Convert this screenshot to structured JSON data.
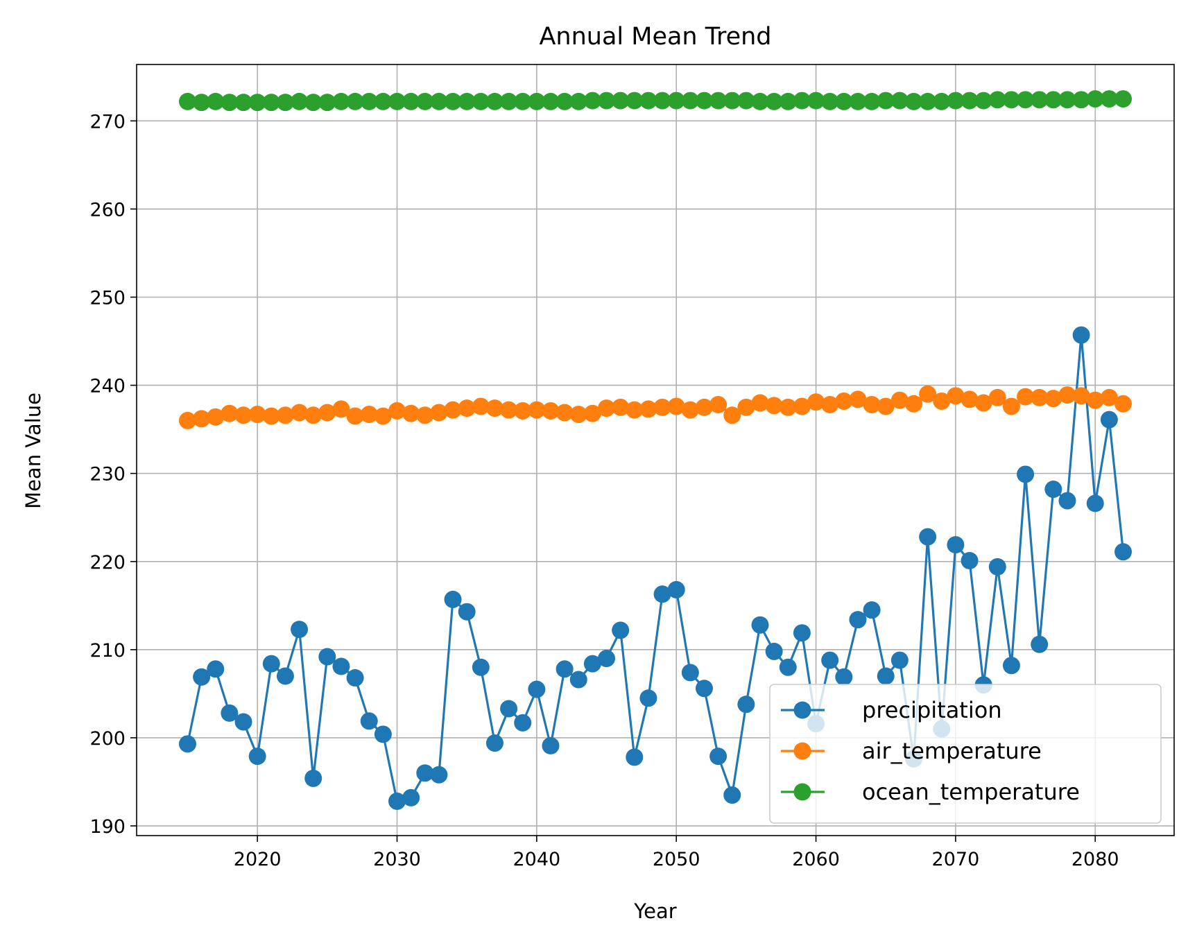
{
  "chart_data": {
    "type": "line",
    "title": "Annual Mean Trend",
    "xlabel": "Year",
    "ylabel": "Mean Value",
    "xlim": [
      2011.35,
      2085.65
    ],
    "ylim": [
      188.9,
      276.4
    ],
    "xticks": [
      2020,
      2030,
      2040,
      2050,
      2060,
      2070,
      2080
    ],
    "yticks": [
      190,
      200,
      210,
      220,
      230,
      240,
      250,
      260,
      270
    ],
    "grid": true,
    "legend_position": "lower right",
    "x": [
      2015,
      2016,
      2017,
      2018,
      2019,
      2020,
      2021,
      2022,
      2023,
      2024,
      2025,
      2026,
      2027,
      2028,
      2029,
      2030,
      2031,
      2032,
      2033,
      2034,
      2035,
      2036,
      2037,
      2038,
      2039,
      2040,
      2041,
      2042,
      2043,
      2044,
      2045,
      2046,
      2047,
      2048,
      2049,
      2050,
      2051,
      2052,
      2053,
      2054,
      2055,
      2056,
      2057,
      2058,
      2059,
      2060,
      2061,
      2062,
      2063,
      2064,
      2065,
      2066,
      2067,
      2068,
      2069,
      2070,
      2071,
      2072,
      2073,
      2074,
      2075,
      2076,
      2077,
      2078,
      2079,
      2080,
      2081,
      2082
    ],
    "series": [
      {
        "name": "precipitation",
        "color": "#1f77b4",
        "values": [
          199.3,
          206.9,
          207.8,
          202.8,
          201.8,
          197.9,
          208.4,
          207.0,
          212.3,
          195.4,
          209.2,
          208.1,
          206.8,
          201.9,
          200.4,
          192.8,
          193.2,
          196.0,
          195.8,
          215.7,
          214.3,
          208.0,
          199.4,
          203.3,
          201.7,
          205.5,
          199.1,
          207.8,
          206.6,
          208.4,
          209.0,
          212.2,
          197.8,
          204.5,
          216.3,
          216.8,
          207.4,
          205.6,
          197.9,
          193.5,
          203.8,
          212.8,
          209.8,
          208.0,
          211.9,
          201.6,
          208.8,
          206.9,
          213.4,
          214.5,
          207.0,
          208.8,
          197.6,
          222.8,
          201.0,
          221.9,
          220.1,
          206.0,
          219.4,
          208.2,
          229.9,
          210.6,
          228.2,
          226.9,
          245.7,
          226.6,
          236.1,
          221.1
        ]
      },
      {
        "name": "air_temperature",
        "color": "#ff7f0e",
        "values": [
          236.0,
          236.2,
          236.4,
          236.8,
          236.6,
          236.7,
          236.5,
          236.6,
          236.9,
          236.6,
          236.9,
          237.3,
          236.5,
          236.7,
          236.5,
          237.1,
          236.8,
          236.6,
          236.9,
          237.2,
          237.4,
          237.6,
          237.4,
          237.2,
          237.1,
          237.2,
          237.1,
          236.9,
          236.7,
          236.8,
          237.4,
          237.5,
          237.2,
          237.3,
          237.5,
          237.6,
          237.2,
          237.5,
          237.8,
          236.6,
          237.5,
          238.0,
          237.7,
          237.5,
          237.6,
          238.1,
          237.8,
          238.2,
          238.4,
          237.8,
          237.6,
          238.3,
          237.9,
          239.0,
          238.2,
          238.8,
          238.4,
          238.0,
          238.6,
          237.6,
          238.7,
          238.6,
          238.5,
          238.9,
          238.8,
          238.3,
          238.6,
          237.9
        ]
      },
      {
        "name": "ocean_temperature",
        "color": "#2ca02c",
        "values": [
          272.2,
          272.1,
          272.2,
          272.1,
          272.1,
          272.1,
          272.1,
          272.1,
          272.2,
          272.1,
          272.1,
          272.2,
          272.2,
          272.2,
          272.2,
          272.2,
          272.2,
          272.2,
          272.2,
          272.2,
          272.2,
          272.2,
          272.2,
          272.2,
          272.2,
          272.2,
          272.2,
          272.2,
          272.2,
          272.3,
          272.3,
          272.3,
          272.3,
          272.3,
          272.3,
          272.3,
          272.3,
          272.3,
          272.3,
          272.3,
          272.3,
          272.2,
          272.2,
          272.2,
          272.3,
          272.3,
          272.2,
          272.2,
          272.2,
          272.2,
          272.3,
          272.3,
          272.2,
          272.2,
          272.2,
          272.3,
          272.3,
          272.3,
          272.4,
          272.4,
          272.4,
          272.4,
          272.4,
          272.4,
          272.4,
          272.5,
          272.5,
          272.5
        ]
      }
    ]
  }
}
